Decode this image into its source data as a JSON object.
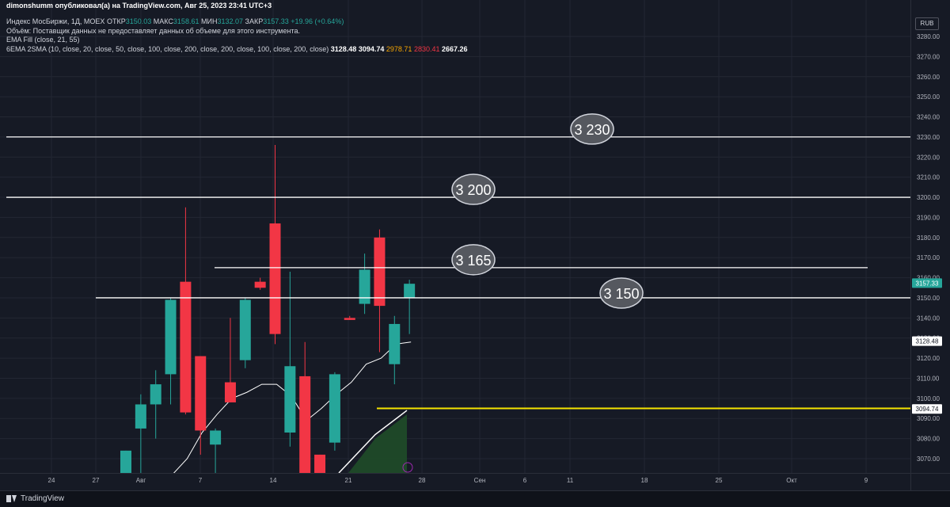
{
  "header": {
    "author_line": "dimonshumm опубликовал(а) на TradingView.com, Авг 25, 2023 23:41 UTC+3",
    "symbol": "Индекс МосБиржи, 1Д, MOEX",
    "open_label": "ОТКР",
    "open_value": "3150.03",
    "high_label": "МАКС",
    "high_value": "3158.61",
    "low_label": "МИН",
    "low_value": "3132.07",
    "close_label": "ЗАКР",
    "close_value": "3157.33",
    "change": "+19.96 (+0.64%)",
    "volume_note": "Объём: Поставщик данных не предоставляет данных об объеме для этого инструмента.",
    "ema_fill": "EMA Fill (close, 21, 55)",
    "indicator": "6EMA 2SMA (10, close, 20, close, 50, close, 100, close, 200, close, 200, close, 100, close, 200, close)",
    "ind_values": [
      "3128.48",
      "3094.74",
      "2978.71",
      "2830.41",
      "2667.26"
    ]
  },
  "currency_button": "RUB",
  "footer": {
    "brand": "TradingView"
  },
  "colors": {
    "up": "#26a69a",
    "down": "#f23645",
    "bg": "#161a25",
    "level": "#ffffff",
    "support": "#f5e400",
    "ema": "#ffffff",
    "fill": "#1f4a28"
  },
  "chart_data": {
    "type": "candlestick",
    "ylim": [
      3062,
      3290
    ],
    "y_ticks": [
      3070,
      3080,
      3090,
      3100,
      3110,
      3120,
      3130,
      3140,
      3150,
      3160,
      3170,
      3180,
      3190,
      3200,
      3210,
      3220,
      3230,
      3240,
      3250,
      3260,
      3270,
      3280
    ],
    "x_labels": [
      "24",
      "27",
      "Авг",
      "7",
      "14",
      "21",
      "28",
      "Сен",
      "6",
      "11",
      "18",
      "25",
      "Окт",
      "9"
    ],
    "candles": [
      {
        "o": 3062,
        "h": 3074,
        "l": 3062,
        "c": 3074
      },
      {
        "o": 3085,
        "h": 3102,
        "l": 3062,
        "c": 3097
      },
      {
        "o": 3097,
        "h": 3114,
        "l": 3080,
        "c": 3107
      },
      {
        "o": 3112,
        "h": 3150,
        "l": 3097,
        "c": 3149
      },
      {
        "o": 3158,
        "h": 3195,
        "l": 3092,
        "c": 3093
      },
      {
        "o": 3121,
        "h": 3121,
        "l": 3072,
        "c": 3084
      },
      {
        "o": 3077,
        "h": 3085,
        "l": 3062,
        "c": 3084
      },
      {
        "o": 3108,
        "h": 3140,
        "l": 3098,
        "c": 3098
      },
      {
        "o": 3119,
        "h": 3150,
        "l": 3115,
        "c": 3149
      },
      {
        "o": 3158,
        "h": 3160,
        "l": 3154,
        "c": 3155
      },
      {
        "o": 3187,
        "h": 3226,
        "l": 3127,
        "c": 3132
      },
      {
        "o": 3083,
        "h": 3163,
        "l": 3076,
        "c": 3116
      },
      {
        "o": 3111,
        "h": 3128,
        "l": 3062,
        "c": 3062
      },
      {
        "o": 3072,
        "h": 3072,
        "l": 3062,
        "c": 3062
      },
      {
        "o": 3078,
        "h": 3113,
        "l": 3074,
        "c": 3112
      },
      {
        "o": 3140,
        "h": 3141,
        "l": 3139,
        "c": 3139
      },
      {
        "o": 3147,
        "h": 3172,
        "l": 3142,
        "c": 3164
      },
      {
        "o": 3180,
        "h": 3184,
        "l": 3123,
        "c": 3146
      },
      {
        "o": 3117,
        "h": 3141,
        "l": 3107,
        "c": 3137
      },
      {
        "o": 3150,
        "h": 3159,
        "l": 3132,
        "c": 3157
      }
    ],
    "ema": [
      3062,
      3070,
      3083,
      3092,
      3100,
      3103,
      3107,
      3107,
      3101,
      3089,
      3095,
      3102,
      3108,
      3117,
      3120,
      3127,
      3128
    ],
    "support_line": 3095,
    "levels": [
      {
        "value": 3230,
        "label": "3 230"
      },
      {
        "value": 3200,
        "label": "3 200"
      },
      {
        "value": 3165,
        "label": "3 165"
      },
      {
        "value": 3150,
        "label": "3 150"
      }
    ],
    "price_tags": [
      {
        "value": 3157.33,
        "text": "3157.33",
        "bg": "#26a69a",
        "fg": "#ffffff"
      },
      {
        "value": 3128.48,
        "text": "3128.48",
        "bg": "#ffffff",
        "fg": "#131722"
      },
      {
        "value": 3094.74,
        "text": "3094.74",
        "bg": "#ffffff",
        "fg": "#131722"
      }
    ]
  }
}
